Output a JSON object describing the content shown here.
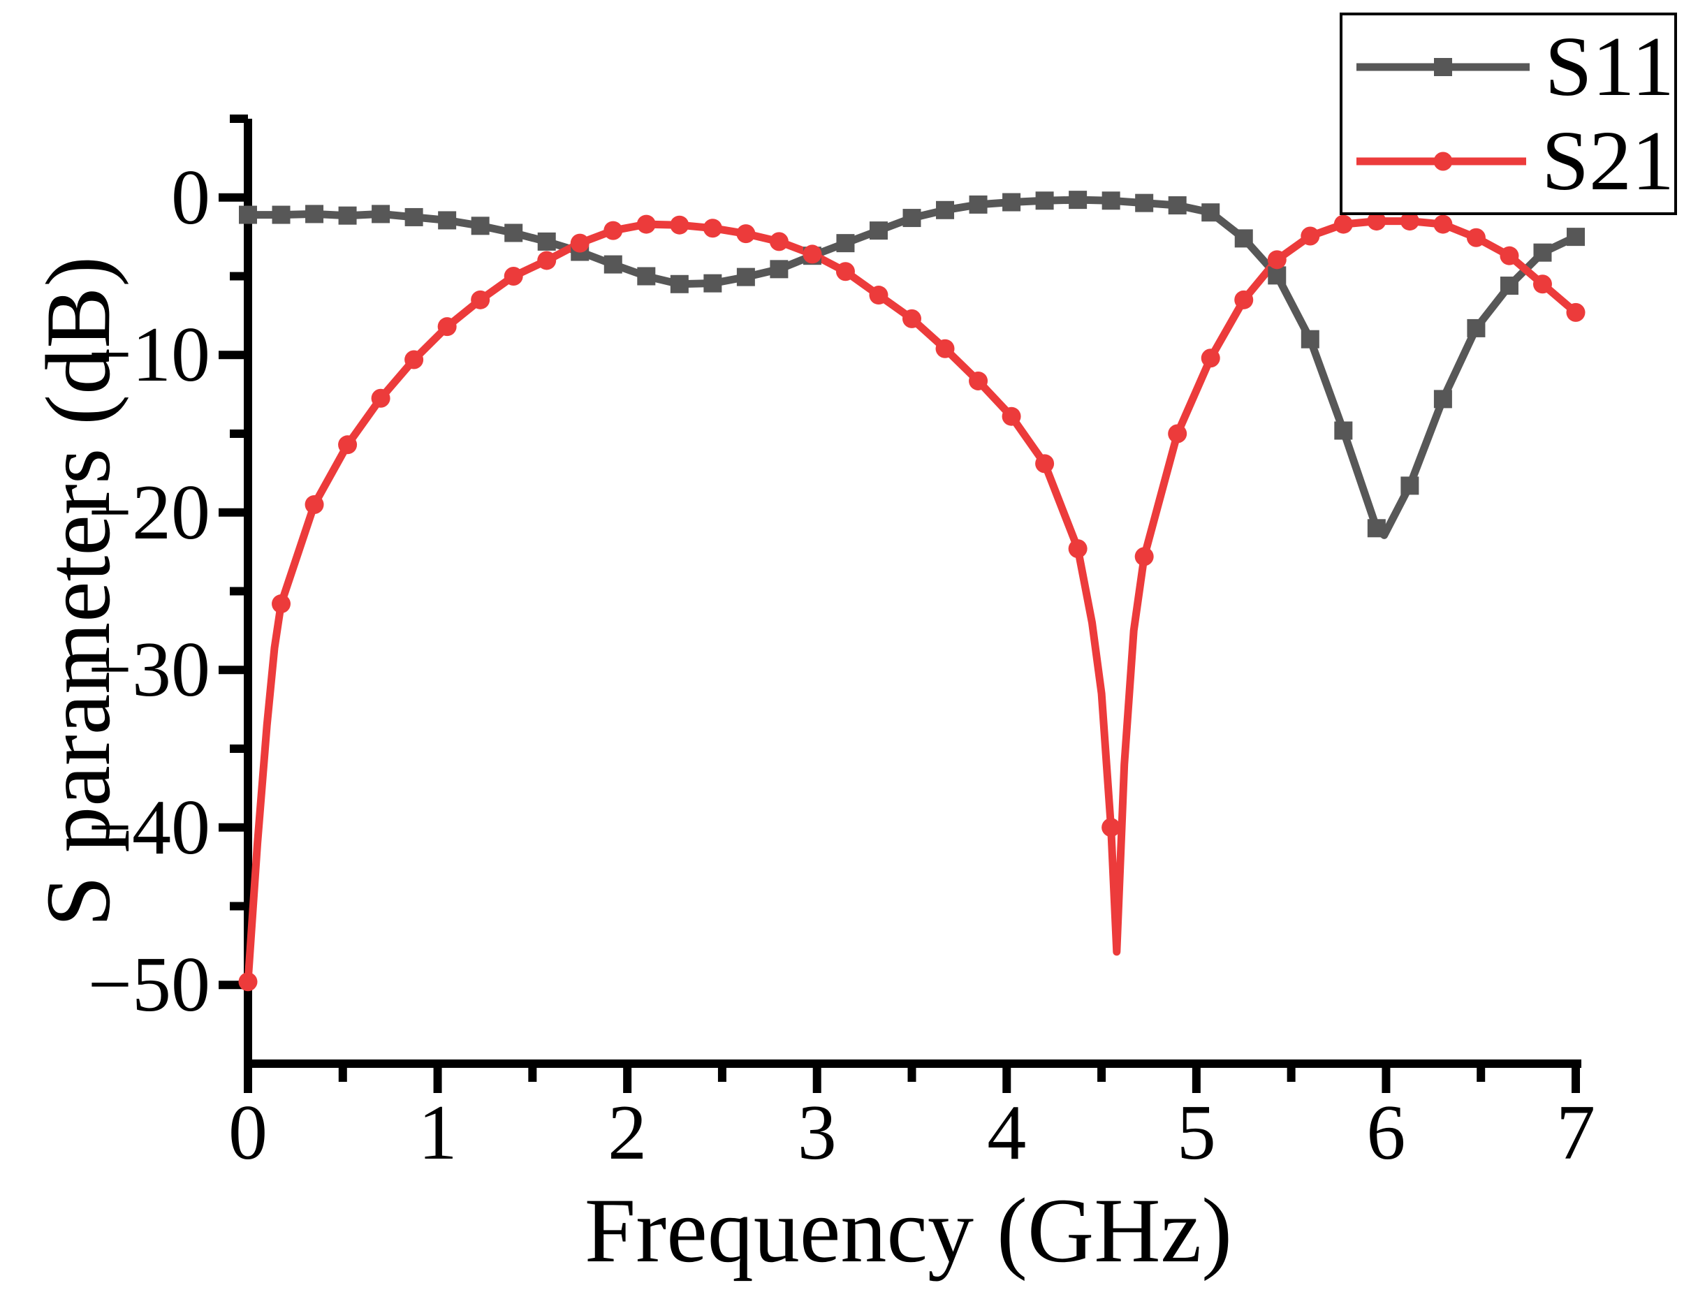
{
  "figure": {
    "background": "#ffffff"
  },
  "chart_data": {
    "type": "line",
    "title": "",
    "xlabel": "Frequency (GHz)",
    "ylabel": "S parameters (dB)",
    "x_axis": {
      "min": 0,
      "max": 7,
      "major_tick_step": 1,
      "minor_tick_step": 0.5,
      "major_ticks": [
        0,
        1,
        2,
        3,
        4,
        5,
        6,
        7
      ],
      "tick_labels": [
        "0",
        "1",
        "2",
        "3",
        "4",
        "5",
        "6",
        "7"
      ]
    },
    "y_axis": {
      "min": -55,
      "max": 5,
      "major_ticks": [
        0,
        -10,
        -20,
        -30,
        -40,
        -50
      ],
      "minor_tick_step": 5,
      "tick_labels": [
        "0",
        "−10",
        "−20",
        "−30",
        "−40",
        "−50"
      ]
    },
    "grid": false,
    "legend": {
      "position": "top-right",
      "entries": [
        {
          "label": "S11"
        },
        {
          "label": "S21"
        }
      ]
    },
    "series": [
      {
        "name": "S11",
        "color": "#575757",
        "marker": "square",
        "points": [
          [
            0.0,
            -1.1
          ],
          [
            0.175,
            -1.1
          ],
          [
            0.35,
            -1.05
          ],
          [
            0.525,
            -1.15
          ],
          [
            0.7,
            -1.05
          ],
          [
            0.875,
            -1.25
          ],
          [
            1.05,
            -1.45
          ],
          [
            1.225,
            -1.8
          ],
          [
            1.4,
            -2.25
          ],
          [
            1.575,
            -2.8
          ],
          [
            1.75,
            -3.45
          ],
          [
            1.925,
            -4.25
          ],
          [
            2.1,
            -5.0
          ],
          [
            2.275,
            -5.5
          ],
          [
            2.45,
            -5.45
          ],
          [
            2.625,
            -5.05
          ],
          [
            2.8,
            -4.55
          ],
          [
            2.975,
            -3.7
          ],
          [
            3.15,
            -2.9
          ],
          [
            3.325,
            -2.1
          ],
          [
            3.5,
            -1.3
          ],
          [
            3.675,
            -0.8
          ],
          [
            3.85,
            -0.45
          ],
          [
            4.025,
            -0.3
          ],
          [
            4.2,
            -0.2
          ],
          [
            4.375,
            -0.15
          ],
          [
            4.55,
            -0.2
          ],
          [
            4.725,
            -0.35
          ],
          [
            4.9,
            -0.5
          ],
          [
            5.075,
            -0.95
          ],
          [
            5.25,
            -2.6
          ],
          [
            5.425,
            -4.95
          ],
          [
            5.6,
            -9.0
          ],
          [
            5.775,
            -14.8
          ],
          [
            5.95,
            -21.0
          ],
          [
            6.125,
            -18.3
          ],
          [
            6.3,
            -12.8
          ],
          [
            6.475,
            -8.3
          ],
          [
            6.65,
            -5.6
          ],
          [
            6.825,
            -3.5
          ],
          [
            7.0,
            -2.5
          ]
        ],
        "line_extra": [
          [
            5.99,
            -21.45
          ]
        ]
      },
      {
        "name": "S21",
        "color": "#ec3b3b",
        "marker": "circle",
        "points": [
          [
            0.0,
            -49.8
          ],
          [
            0.175,
            -25.8
          ],
          [
            0.35,
            -19.5
          ],
          [
            0.525,
            -15.7
          ],
          [
            0.7,
            -12.75
          ],
          [
            0.875,
            -10.3
          ],
          [
            1.05,
            -8.2
          ],
          [
            1.225,
            -6.5
          ],
          [
            1.4,
            -5.0
          ],
          [
            1.575,
            -4.0
          ],
          [
            1.75,
            -2.9
          ],
          [
            1.925,
            -2.1
          ],
          [
            2.1,
            -1.7
          ],
          [
            2.275,
            -1.75
          ],
          [
            2.45,
            -1.95
          ],
          [
            2.625,
            -2.3
          ],
          [
            2.8,
            -2.8
          ],
          [
            2.975,
            -3.6
          ],
          [
            3.15,
            -4.7
          ],
          [
            3.325,
            -6.2
          ],
          [
            3.5,
            -7.7
          ],
          [
            3.675,
            -9.6
          ],
          [
            3.85,
            -11.65
          ],
          [
            4.025,
            -13.9
          ],
          [
            4.2,
            -16.9
          ],
          [
            4.375,
            -22.3
          ],
          [
            4.55,
            -40.0
          ],
          [
            4.725,
            -22.8
          ],
          [
            4.9,
            -15.0
          ],
          [
            5.075,
            -10.2
          ],
          [
            5.25,
            -6.5
          ],
          [
            5.425,
            -3.95
          ],
          [
            5.6,
            -2.45
          ],
          [
            5.775,
            -1.7
          ],
          [
            5.95,
            -1.5
          ],
          [
            6.125,
            -1.5
          ],
          [
            6.3,
            -1.7
          ],
          [
            6.475,
            -2.55
          ],
          [
            6.65,
            -3.7
          ],
          [
            6.825,
            -5.5
          ],
          [
            7.0,
            -7.3
          ]
        ],
        "line_extra": [
          [
            0.05,
            -41.0
          ],
          [
            0.1,
            -33.5
          ],
          [
            0.14,
            -28.6
          ],
          [
            4.45,
            -27.0
          ],
          [
            4.5,
            -31.5
          ],
          [
            4.58,
            -47.9
          ],
          [
            4.62,
            -36.0
          ],
          [
            4.67,
            -27.5
          ]
        ]
      }
    ]
  }
}
